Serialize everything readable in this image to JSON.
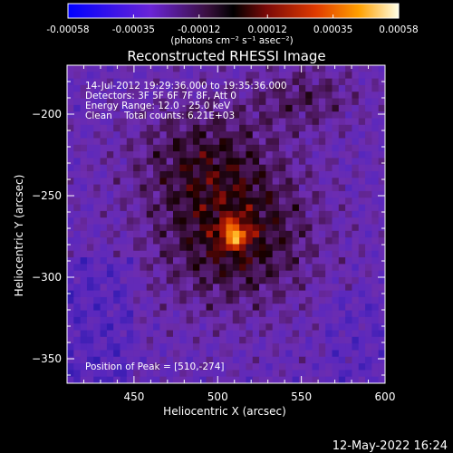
{
  "chart_data": {
    "type": "heatmap",
    "title": "Reconstructed RHESSI Image",
    "xlabel": "Heliocentric X (arcsec)",
    "ylabel": "Heliocentric Y (arcsec)",
    "xlim": [
      410,
      600
    ],
    "ylim": [
      -365,
      -170
    ],
    "x_ticks": [
      450,
      500,
      550,
      600
    ],
    "y_ticks": [
      -200,
      -250,
      -300,
      -350
    ],
    "colorbar": {
      "ticks": [
        "-0.00058",
        "-0.00035",
        "-0.00012",
        "0.00012",
        "0.00035",
        "0.00058"
      ],
      "unit": "(photons cm⁻² s⁻¹ asec⁻²)",
      "range": [
        -0.00058,
        0.00058
      ]
    },
    "annotations": [
      "14-Jul-2012 19:29:36.000 to 19:35:36.000",
      "Detectors: 3F 5F 6F 7F 8F, Att 0",
      "Energy Range: 12.0 - 25.0 keV",
      "Clean    Total counts: 6.21E+03"
    ],
    "peak_label": "Position of Peak = [510,-274]",
    "peak": {
      "x": 510,
      "y": -274
    },
    "footer_date": "12-May-2022 16:24"
  }
}
